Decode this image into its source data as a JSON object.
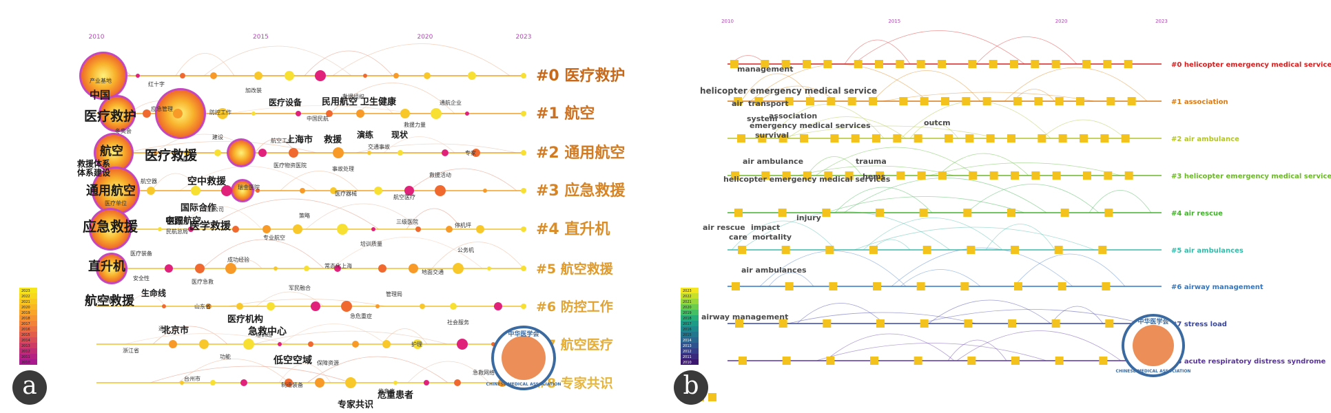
{
  "panels": [
    {
      "letter": "a",
      "years": [
        2010,
        2015,
        2020,
        2023
      ],
      "legend_years": [
        2023,
        2022,
        2021,
        2020,
        2019,
        2018,
        2017,
        2016,
        2015,
        2014,
        2013,
        2012,
        2011,
        2010
      ],
      "legend_colors": [
        "#f5e61a",
        "#f7d81a",
        "#f8c81c",
        "#f9b821",
        "#f9a628",
        "#f69430",
        "#f18238",
        "#ea7041",
        "#e25e4b",
        "#d84d58",
        "#ce3c65",
        "#c22e73",
        "#b52281",
        "#a81a8e"
      ],
      "cluster_labels": [
        {
          "id": "#0",
          "name": "医疗救护",
          "color": "#c8691a"
        },
        {
          "id": "#1",
          "name": "航空",
          "color": "#cd7020"
        },
        {
          "id": "#2",
          "name": "通用航空",
          "color": "#d27b22"
        },
        {
          "id": "#3",
          "name": "应急救援",
          "color": "#d68426"
        },
        {
          "id": "#4",
          "name": "直升机",
          "color": "#da8e2a"
        },
        {
          "id": "#5",
          "name": "航空救援",
          "color": "#df9a2e"
        },
        {
          "id": "#6",
          "name": "防控工作",
          "color": "#e1a333"
        },
        {
          "id": "#7",
          "name": "航空医疗",
          "color": "#e4ad38"
        },
        {
          "id": "#8",
          "name": "专家共识",
          "color": "#e6b53d"
        }
      ],
      "big_terms": [
        {
          "text": "中国"
        },
        {
          "text": "医疗救护"
        },
        {
          "text": "航空"
        },
        {
          "text": "医疗救援"
        },
        {
          "text": "救援体系"
        },
        {
          "text": "体系建设"
        },
        {
          "text": "通用航空"
        },
        {
          "text": "空中救援"
        },
        {
          "text": "应急救援"
        },
        {
          "text": "医学救援"
        },
        {
          "text": "中国航空"
        },
        {
          "text": "直升机"
        },
        {
          "text": "航空救援"
        },
        {
          "text": "生命线"
        },
        {
          "text": "医疗机构"
        },
        {
          "text": "急救中心"
        },
        {
          "text": "北京市"
        },
        {
          "text": "低空空域"
        },
        {
          "text": "专家共识"
        },
        {
          "text": "危重患者"
        },
        {
          "text": "民用航空"
        },
        {
          "text": "卫生健康"
        },
        {
          "text": "上海市"
        },
        {
          "text": "救援"
        },
        {
          "text": "医疗设备"
        },
        {
          "text": "演练"
        },
        {
          "text": "现状"
        },
        {
          "text": "国际合作"
        },
        {
          "text": "医疗"
        }
      ],
      "small_terms": [
        {
          "text": "产业基地"
        },
        {
          "text": "应急管理"
        },
        {
          "text": "建设"
        },
        {
          "text": "医疗物资医院"
        },
        {
          "text": "医疗器械"
        },
        {
          "text": "三级医院"
        },
        {
          "text": "公务机"
        },
        {
          "text": "安全性"
        },
        {
          "text": "山东省"
        },
        {
          "text": "培训班"
        },
        {
          "text": "保障资源"
        },
        {
          "text": "信息库"
        },
        {
          "text": "通航企业"
        },
        {
          "text": "冬奥会"
        },
        {
          "text": "农业"
        },
        {
          "text": "瑞金医院"
        },
        {
          "text": "策略"
        },
        {
          "text": "培训质量"
        },
        {
          "text": "地面交通"
        },
        {
          "text": "抢险救灾"
        },
        {
          "text": "通航"
        },
        {
          "text": "功能"
        },
        {
          "text": "制造装备"
        },
        {
          "text": "救援组织"
        },
        {
          "text": "救援力量"
        },
        {
          "text": "专家"
        },
        {
          "text": "航空器"
        },
        {
          "text": "保险公司"
        },
        {
          "text": "专业航空"
        },
        {
          "text": "常态化上海"
        },
        {
          "text": "管理局"
        },
        {
          "text": "社会服务"
        },
        {
          "text": "浙江省"
        },
        {
          "text": "台州市"
        },
        {
          "text": "加改装"
        },
        {
          "text": "中国民航"
        },
        {
          "text": "交通事故"
        },
        {
          "text": "救援活动"
        },
        {
          "text": "医疗单位"
        },
        {
          "text": "民航总局"
        },
        {
          "text": "成功经验"
        },
        {
          "text": "军民融合"
        },
        {
          "text": "急危重症"
        },
        {
          "text": "护理"
        },
        {
          "text": "急救网络"
        },
        {
          "text": "红十字"
        },
        {
          "text": "防控工作"
        },
        {
          "text": "航空工业"
        },
        {
          "text": "事故处理"
        },
        {
          "text": "航空医疗"
        },
        {
          "text": "停机坪"
        },
        {
          "text": "医疗装备"
        },
        {
          "text": "医疗急救"
        }
      ]
    },
    {
      "letter": "b",
      "years": [
        2010,
        2015,
        2020,
        2023
      ],
      "legend_years": [
        2023,
        2022,
        2021,
        2020,
        2019,
        2018,
        2017,
        2016,
        2015,
        2014,
        2013,
        2012,
        2011,
        2010
      ],
      "legend_colors": [
        "#f4e61e",
        "#c8e02a",
        "#9ad83a",
        "#6ccd4d",
        "#44bf63",
        "#27ad78",
        "#1c9b86",
        "#1e898c",
        "#22778e",
        "#28658f",
        "#2e528d",
        "#353e88",
        "#3a2a7e",
        "#3b176f"
      ],
      "cluster_labels": [
        {
          "id": "#0",
          "name": "helicopter emergency medical service",
          "color": "#d62020"
        },
        {
          "id": "#1",
          "name": "association",
          "color": "#d87a1a"
        },
        {
          "id": "#2",
          "name": "air ambulance",
          "color": "#b2c42a"
        },
        {
          "id": "#3",
          "name": "helicopter emergency medical services",
          "color": "#6cb82a"
        },
        {
          "id": "#4",
          "name": "air rescue",
          "color": "#44b02e"
        },
        {
          "id": "#5",
          "name": "air ambulances",
          "color": "#38b8a8"
        },
        {
          "id": "#6",
          "name": "airway management",
          "color": "#2d78c8"
        },
        {
          "id": "#7",
          "name": "stress load",
          "color": "#3646a8"
        },
        {
          "id": "#8",
          "name": "acute respiratory distress syndrome",
          "color": "#5a32a0"
        }
      ],
      "terms": [
        {
          "text": "management"
        },
        {
          "text": "helicopter emergency medical service"
        },
        {
          "text": "air"
        },
        {
          "text": "transport"
        },
        {
          "text": "system"
        },
        {
          "text": "association"
        },
        {
          "text": "emergency medical services"
        },
        {
          "text": "survival"
        },
        {
          "text": "outcm"
        },
        {
          "text": "air ambulance"
        },
        {
          "text": "trauma"
        },
        {
          "text": "hems"
        },
        {
          "text": "helicopter emergency medical services"
        },
        {
          "text": "injury"
        },
        {
          "text": "air rescue"
        },
        {
          "text": "impact"
        },
        {
          "text": "care"
        },
        {
          "text": "mortality"
        },
        {
          "text": "air ambulances"
        },
        {
          "text": "airway management"
        }
      ]
    }
  ],
  "logo": {
    "top": "中华医学会",
    "bottom": "CHINESE MEDICAL ASSOCIATION"
  },
  "chart_data": [
    {
      "type": "timeline",
      "language": "zh",
      "x": [
        2010,
        2015,
        2020,
        2023
      ],
      "series": [
        {
          "name": "#0 医疗救护"
        },
        {
          "name": "#1 航空"
        },
        {
          "name": "#2 通用航空"
        },
        {
          "name": "#3 应急救援"
        },
        {
          "name": "#4 直升机"
        },
        {
          "name": "#5 航空救援"
        },
        {
          "name": "#6 防控工作"
        },
        {
          "name": "#7 航空医疗"
        },
        {
          "name": "#8 专家共识"
        }
      ]
    },
    {
      "type": "timeline",
      "language": "en",
      "x": [
        2010,
        2015,
        2020,
        2023
      ],
      "series": [
        {
          "name": "#0 helicopter emergency medical service"
        },
        {
          "name": "#1 association"
        },
        {
          "name": "#2 air ambulance"
        },
        {
          "name": "#3 helicopter emergency medical services"
        },
        {
          "name": "#4 air rescue"
        },
        {
          "name": "#5 air ambulances"
        },
        {
          "name": "#6 airway management"
        },
        {
          "name": "#7 stress load"
        },
        {
          "name": "#8 acute respiratory distress syndrome"
        }
      ]
    }
  ]
}
